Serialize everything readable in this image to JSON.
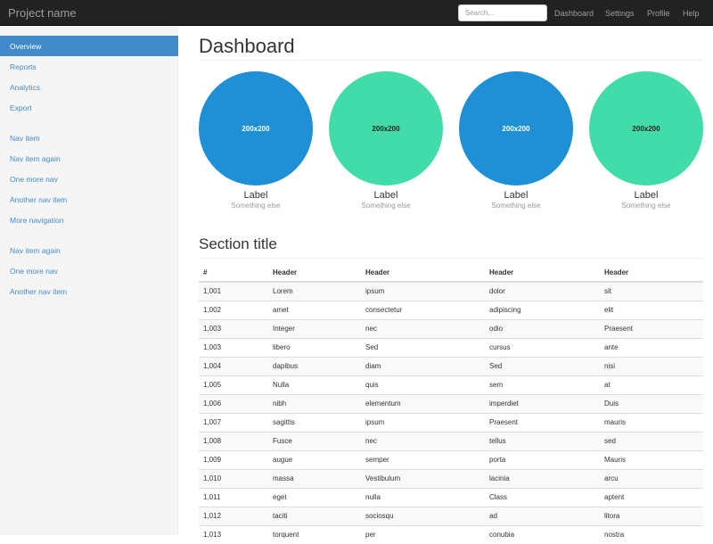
{
  "navbar": {
    "brand": "Project name",
    "search_placeholder": "Search...",
    "links": [
      "Dashboard",
      "Settings",
      "Profile",
      "Help"
    ]
  },
  "sidebar": {
    "groups": [
      [
        "Overview",
        "Reports",
        "Analytics",
        "Export"
      ],
      [
        "Nav item",
        "Nav item again",
        "One more nav",
        "Another nav item",
        "More navigation"
      ],
      [
        "Nav item again",
        "One more nav",
        "Another nav item"
      ]
    ],
    "active": "Overview"
  },
  "main": {
    "title": "Dashboard",
    "placeholders": [
      {
        "text": "200x200",
        "color": "#1f8fd6",
        "label": "Label",
        "sub": "Something else"
      },
      {
        "text": "200x200",
        "color": "#42dcaa",
        "label": "Label",
        "sub": "Something else"
      },
      {
        "text": "200x200",
        "color": "#1f8fd6",
        "label": "Label",
        "sub": "Something else"
      },
      {
        "text": "200x200",
        "color": "#42dcaa",
        "label": "Label",
        "sub": "Something else"
      }
    ],
    "section_title": "Section title",
    "table": {
      "headers": [
        "#",
        "Header",
        "Header",
        "Header",
        "Header"
      ],
      "rows": [
        [
          "1,001",
          "Lorem",
          "ipsum",
          "dolor",
          "sit"
        ],
        [
          "1,002",
          "amet",
          "consectetur",
          "adipiscing",
          "elit"
        ],
        [
          "1,003",
          "Integer",
          "nec",
          "odio",
          "Praesent"
        ],
        [
          "1,003",
          "libero",
          "Sed",
          "cursus",
          "ante"
        ],
        [
          "1,004",
          "dapibus",
          "diam",
          "Sed",
          "nisi"
        ],
        [
          "1,005",
          "Nulla",
          "quis",
          "sem",
          "at"
        ],
        [
          "1,006",
          "nibh",
          "elementum",
          "imperdiet",
          "Duis"
        ],
        [
          "1,007",
          "sagittis",
          "ipsum",
          "Praesent",
          "mauris"
        ],
        [
          "1,008",
          "Fusce",
          "nec",
          "tellus",
          "sed"
        ],
        [
          "1,009",
          "augue",
          "semper",
          "porta",
          "Mauris"
        ],
        [
          "1,010",
          "massa",
          "Vestibulum",
          "lacinia",
          "arcu"
        ],
        [
          "1,011",
          "eget",
          "nulla",
          "Class",
          "aptent"
        ],
        [
          "1,012",
          "taciti",
          "sociosqu",
          "ad",
          "litora"
        ],
        [
          "1,013",
          "torquent",
          "per",
          "conubia",
          "nostra"
        ]
      ]
    }
  }
}
